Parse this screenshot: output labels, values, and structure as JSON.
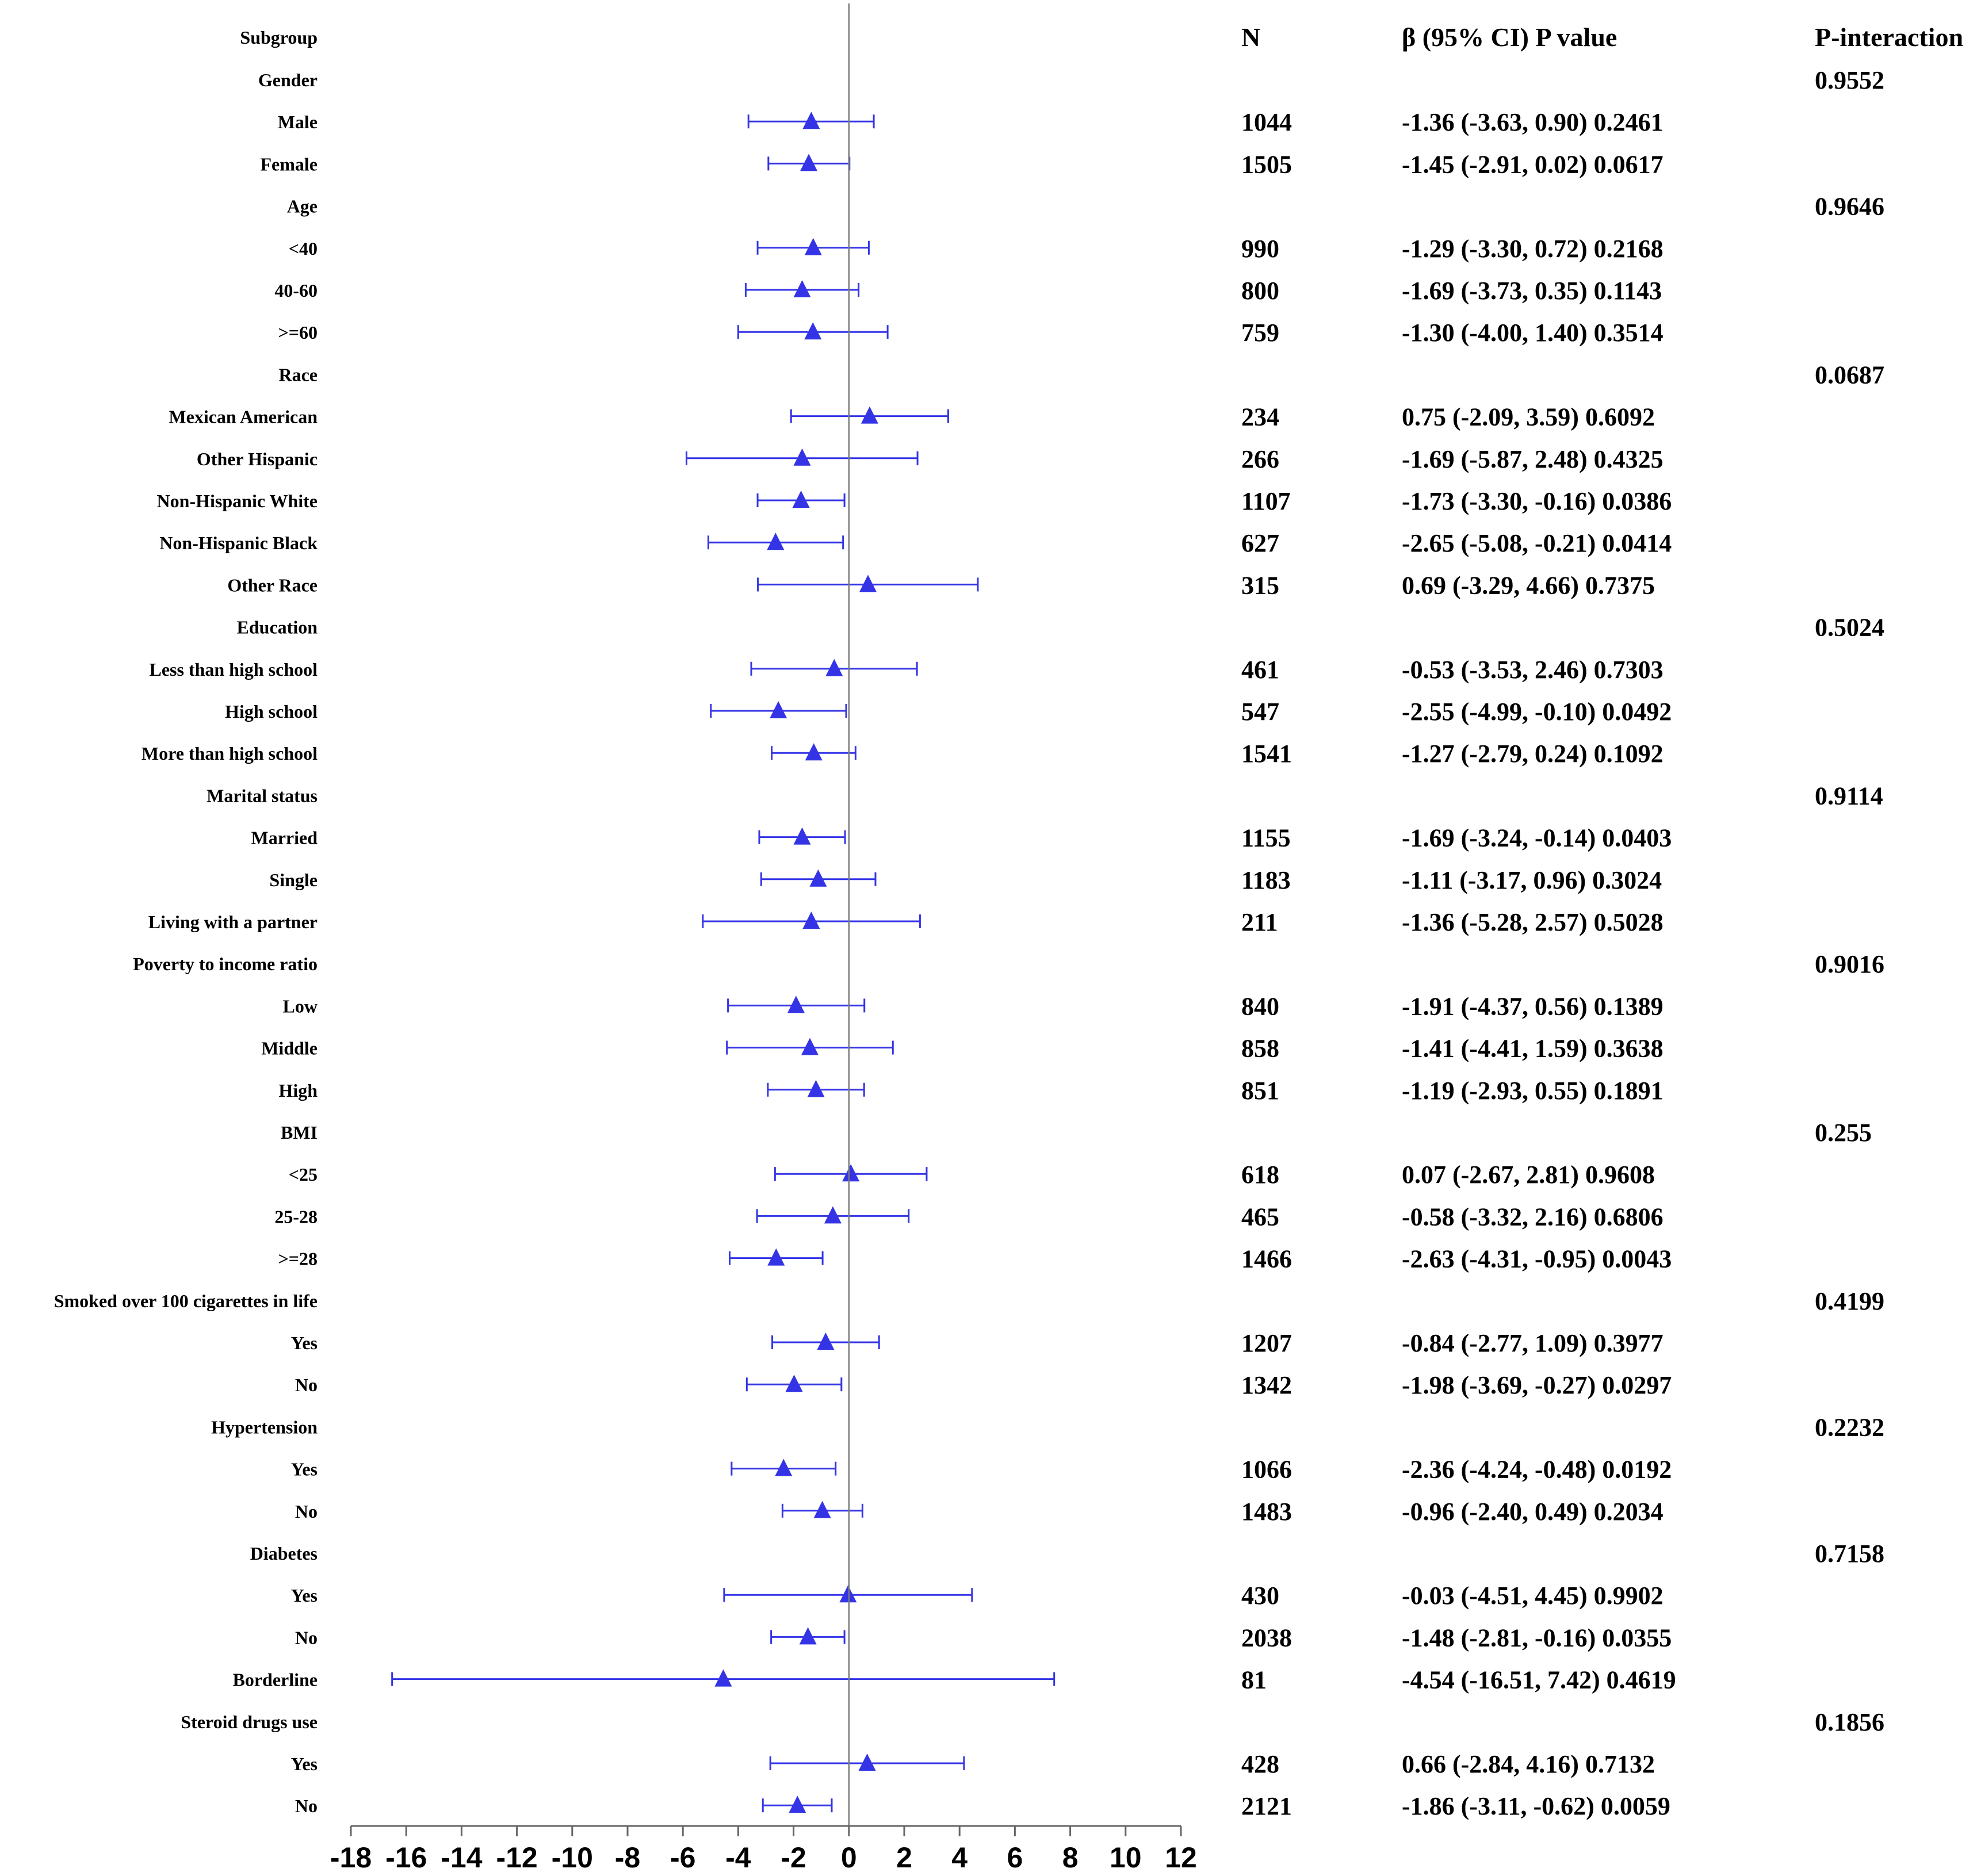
{
  "chart_data": {
    "type": "forest",
    "headers": {
      "subgroup": "Subgroup",
      "n": "N",
      "estimate": "β (95% CI) P value",
      "p_interaction": "P-interaction"
    },
    "xlim": [
      -18,
      12
    ],
    "ticks": [
      -18,
      -16,
      -14,
      -12,
      -10,
      -8,
      -6,
      -4,
      -2,
      0,
      2,
      4,
      6,
      8,
      10,
      12
    ],
    "reference_line": 0,
    "marker": "triangle",
    "color": "#3434e6",
    "rows": [
      {
        "label": "Gender",
        "group": true,
        "p_interaction": "0.9552"
      },
      {
        "label": "Male",
        "n": "1044",
        "beta": -1.36,
        "lo": -3.63,
        "hi": 0.9,
        "text": "-1.36 (-3.63, 0.90) 0.2461"
      },
      {
        "label": "Female",
        "n": "1505",
        "beta": -1.45,
        "lo": -2.91,
        "hi": 0.02,
        "text": "-1.45 (-2.91, 0.02) 0.0617"
      },
      {
        "label": "Age",
        "group": true,
        "p_interaction": "0.9646"
      },
      {
        "label": "<40",
        "n": "990",
        "beta": -1.29,
        "lo": -3.3,
        "hi": 0.72,
        "text": "-1.29 (-3.30, 0.72) 0.2168"
      },
      {
        "label": "40-60",
        "n": "800",
        "beta": -1.69,
        "lo": -3.73,
        "hi": 0.35,
        "text": "-1.69 (-3.73, 0.35) 0.1143"
      },
      {
        "label": ">=60",
        "n": "759",
        "beta": -1.3,
        "lo": -4.0,
        "hi": 1.4,
        "text": "-1.30 (-4.00, 1.40) 0.3514"
      },
      {
        "label": "Race",
        "group": true,
        "p_interaction": "0.0687"
      },
      {
        "label": "Mexican American",
        "n": "234",
        "beta": 0.75,
        "lo": -2.09,
        "hi": 3.59,
        "text": "0.75 (-2.09, 3.59) 0.6092"
      },
      {
        "label": "Other Hispanic",
        "n": "266",
        "beta": -1.69,
        "lo": -5.87,
        "hi": 2.48,
        "text": "-1.69 (-5.87, 2.48) 0.4325"
      },
      {
        "label": "Non-Hispanic White",
        "n": "1107",
        "beta": -1.73,
        "lo": -3.3,
        "hi": -0.16,
        "text": "-1.73 (-3.30, -0.16) 0.0386"
      },
      {
        "label": "Non-Hispanic Black",
        "n": "627",
        "beta": -2.65,
        "lo": -5.08,
        "hi": -0.21,
        "text": "-2.65 (-5.08, -0.21) 0.0414"
      },
      {
        "label": "Other Race",
        "n": "315",
        "beta": 0.69,
        "lo": -3.29,
        "hi": 4.66,
        "text": "0.69 (-3.29, 4.66) 0.7375"
      },
      {
        "label": "Education",
        "group": true,
        "p_interaction": "0.5024"
      },
      {
        "label": "Less than high school",
        "n": "461",
        "beta": -0.53,
        "lo": -3.53,
        "hi": 2.46,
        "text": "-0.53 (-3.53, 2.46) 0.7303"
      },
      {
        "label": "High school",
        "n": "547",
        "beta": -2.55,
        "lo": -4.99,
        "hi": -0.1,
        "text": "-2.55 (-4.99, -0.10) 0.0492"
      },
      {
        "label": "More than high school",
        "n": "1541",
        "beta": -1.27,
        "lo": -2.79,
        "hi": 0.24,
        "text": "-1.27 (-2.79, 0.24) 0.1092"
      },
      {
        "label": "Marital status",
        "group": true,
        "p_interaction": "0.9114"
      },
      {
        "label": "Married",
        "n": "1155",
        "beta": -1.69,
        "lo": -3.24,
        "hi": -0.14,
        "text": "-1.69 (-3.24, -0.14) 0.0403"
      },
      {
        "label": "Single",
        "n": "1183",
        "beta": -1.11,
        "lo": -3.17,
        "hi": 0.96,
        "text": "-1.11 (-3.17, 0.96) 0.3024"
      },
      {
        "label": "Living with a partner",
        "n": "211",
        "beta": -1.36,
        "lo": -5.28,
        "hi": 2.57,
        "text": "-1.36 (-5.28, 2.57) 0.5028"
      },
      {
        "label": "Poverty to income ratio",
        "group": true,
        "p_interaction": "0.9016"
      },
      {
        "label": "Low",
        "n": "840",
        "beta": -1.91,
        "lo": -4.37,
        "hi": 0.56,
        "text": "-1.91 (-4.37, 0.56) 0.1389"
      },
      {
        "label": "Middle",
        "n": "858",
        "beta": -1.41,
        "lo": -4.41,
        "hi": 1.59,
        "text": "-1.41 (-4.41, 1.59) 0.3638"
      },
      {
        "label": "High",
        "n": "851",
        "beta": -1.19,
        "lo": -2.93,
        "hi": 0.55,
        "text": "-1.19 (-2.93, 0.55) 0.1891"
      },
      {
        "label": "BMI",
        "group": true,
        "p_interaction": "0.255"
      },
      {
        "label": "<25",
        "n": "618",
        "beta": 0.07,
        "lo": -2.67,
        "hi": 2.81,
        "text": "0.07 (-2.67, 2.81) 0.9608"
      },
      {
        "label": "25-28",
        "n": "465",
        "beta": -0.58,
        "lo": -3.32,
        "hi": 2.16,
        "text": "-0.58 (-3.32, 2.16) 0.6806"
      },
      {
        "label": ">=28",
        "n": "1466",
        "beta": -2.63,
        "lo": -4.31,
        "hi": -0.95,
        "text": "-2.63 (-4.31, -0.95) 0.0043"
      },
      {
        "label": "Smoked over 100 cigarettes in life",
        "group": true,
        "p_interaction": "0.4199"
      },
      {
        "label": "Yes",
        "n": "1207",
        "beta": -0.84,
        "lo": -2.77,
        "hi": 1.09,
        "text": "-0.84 (-2.77, 1.09) 0.3977"
      },
      {
        "label": "No",
        "n": "1342",
        "beta": -1.98,
        "lo": -3.69,
        "hi": -0.27,
        "text": "-1.98 (-3.69, -0.27) 0.0297"
      },
      {
        "label": "Hypertension",
        "group": true,
        "p_interaction": "0.2232"
      },
      {
        "label": "Yes",
        "n": "1066",
        "beta": -2.36,
        "lo": -4.24,
        "hi": -0.48,
        "text": "-2.36 (-4.24, -0.48) 0.0192"
      },
      {
        "label": "No",
        "n": "1483",
        "beta": -0.96,
        "lo": -2.4,
        "hi": 0.49,
        "text": "-0.96 (-2.40, 0.49) 0.2034"
      },
      {
        "label": "Diabetes",
        "group": true,
        "p_interaction": "0.7158"
      },
      {
        "label": "Yes",
        "n": "430",
        "beta": -0.03,
        "lo": -4.51,
        "hi": 4.45,
        "text": "-0.03 (-4.51, 4.45) 0.9902"
      },
      {
        "label": "No",
        "n": "2038",
        "beta": -1.48,
        "lo": -2.81,
        "hi": -0.16,
        "text": "-1.48 (-2.81, -0.16) 0.0355"
      },
      {
        "label": "Borderline",
        "n": "81",
        "beta": -4.54,
        "lo": -16.51,
        "hi": 7.42,
        "text": "-4.54 (-16.51, 7.42) 0.4619"
      },
      {
        "label": "Steroid drugs use",
        "group": true,
        "p_interaction": "0.1856"
      },
      {
        "label": "Yes",
        "n": "428",
        "beta": 0.66,
        "lo": -2.84,
        "hi": 4.16,
        "text": "0.66 (-2.84, 4.16) 0.7132"
      },
      {
        "label": "No",
        "n": "2121",
        "beta": -1.86,
        "lo": -3.11,
        "hi": -0.62,
        "text": "-1.86 (-3.11, -0.62) 0.0059"
      }
    ]
  }
}
